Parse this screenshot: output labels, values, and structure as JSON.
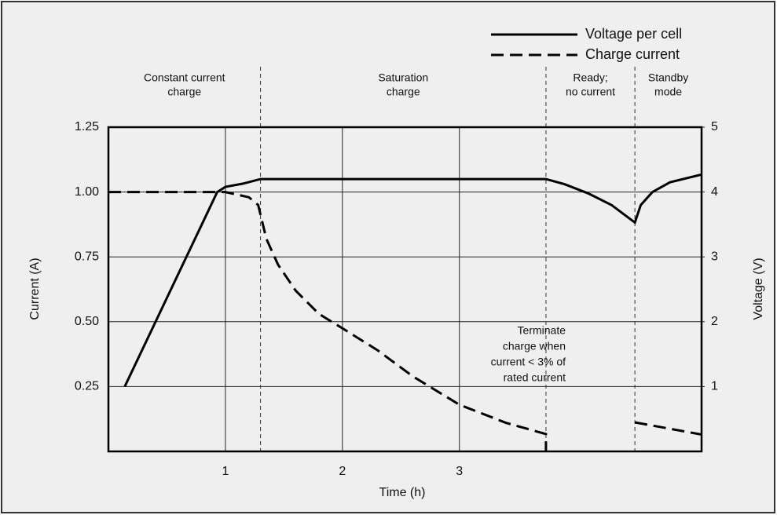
{
  "chart_data": {
    "type": "line",
    "xlabel": "Time (h)",
    "ylabel": "Current (A)",
    "y2label": "Voltage (V)",
    "xlim": [
      0,
      5.07
    ],
    "xticks": [
      1,
      2,
      3
    ],
    "ylim": [
      0,
      1.25
    ],
    "yticks": [
      0.25,
      {
        "value": 0.5,
        "label": "0.50"
      },
      0.75,
      {
        "value": 1.0,
        "label": "1.00"
      },
      1.25
    ],
    "y2lim": [
      0,
      5
    ],
    "y2ticks": [
      1,
      2,
      3,
      4,
      5
    ],
    "grid": true,
    "legend": "top-right",
    "phase_boundaries": [
      1.3,
      3.74,
      4.5
    ],
    "phases": [
      {
        "label": [
          "Constant current",
          "charge"
        ]
      },
      {
        "label": [
          "Saturation",
          "charge"
        ]
      },
      {
        "label": [
          "Ready;",
          "no current"
        ]
      },
      {
        "label": [
          "Standby",
          "mode"
        ]
      }
    ],
    "annotation": [
      "Terminate",
      "charge when",
      "current < 3% of",
      "rated current"
    ],
    "series": [
      {
        "name": "Voltage per cell",
        "color": "#000000",
        "dash": "solid",
        "axis": "y2",
        "x": [
          0.14,
          0.93,
          1.0,
          1.15,
          1.3,
          3.74,
          3.9,
          4.1,
          4.3,
          4.5,
          4.55,
          4.65,
          4.8,
          5.07
        ],
        "values": [
          1.0,
          4.0,
          4.08,
          4.13,
          4.2,
          4.2,
          4.12,
          3.98,
          3.8,
          3.53,
          3.8,
          4.0,
          4.15,
          4.27
        ]
      },
      {
        "name": "Charge current",
        "color": "#000000",
        "dash": "dashed",
        "x": [
          0,
          1.0,
          1.2,
          1.28,
          1.35,
          1.45,
          1.6,
          1.8,
          2.0,
          2.3,
          2.6,
          3.0,
          3.4,
          3.74,
          3.74,
          null,
          4.5,
          5.07
        ],
        "values": [
          1.0,
          1.0,
          0.98,
          0.95,
          0.82,
          0.72,
          0.62,
          0.53,
          0.475,
          0.39,
          0.29,
          0.18,
          0.11,
          0.067,
          0,
          null,
          0.112,
          0.065
        ]
      }
    ]
  }
}
